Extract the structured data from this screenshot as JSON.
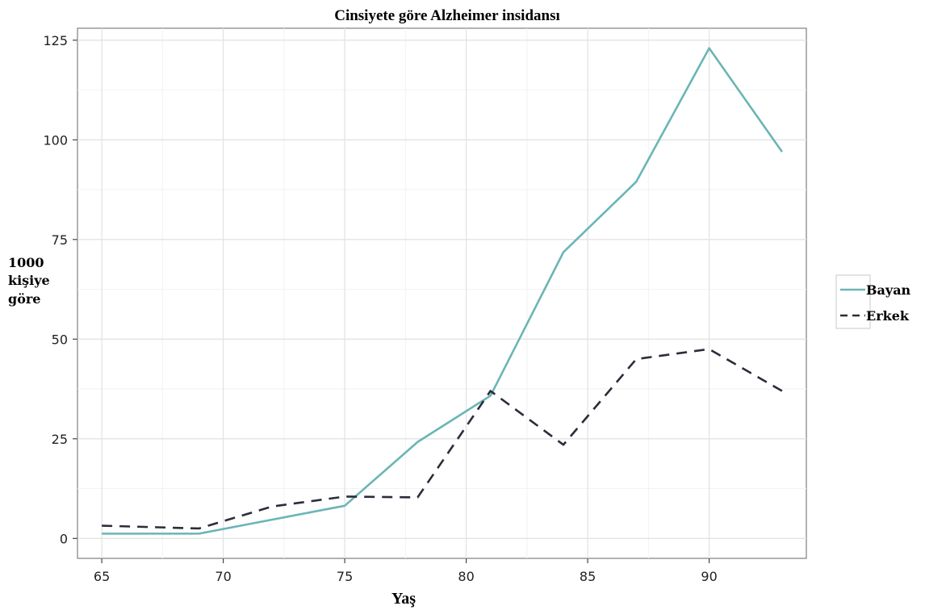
{
  "chart_data": {
    "type": "line",
    "title": "Cinsiyete göre Alzheimer insidansı",
    "xlabel": "Yaş",
    "ylabel": [
      "1000",
      "kişiye",
      "göre"
    ],
    "xlim": [
      64,
      94
    ],
    "ylim": [
      -5,
      128
    ],
    "x_ticks": [
      65,
      70,
      75,
      80,
      85,
      90
    ],
    "y_ticks": [
      0,
      25,
      50,
      75,
      100,
      125
    ],
    "grid": true,
    "legend_position": "right",
    "series": [
      {
        "name": "Bayan",
        "color": "#6bb5b5",
        "dash": "solid",
        "x": [
          65,
          69,
          75,
          78,
          81,
          84,
          87,
          90,
          93
        ],
        "values": [
          1.2,
          1.2,
          8.2,
          24.2,
          35.8,
          71.8,
          89.5,
          123,
          97
        ]
      },
      {
        "name": "Erkek",
        "color": "#2a2e3a",
        "dash": "dashed",
        "x": [
          65,
          69,
          72,
          75,
          78,
          81,
          84,
          87,
          90,
          93
        ],
        "values": [
          3.2,
          2.5,
          8.0,
          10.5,
          10.3,
          37,
          23.5,
          45,
          47.5,
          37
        ]
      }
    ]
  }
}
